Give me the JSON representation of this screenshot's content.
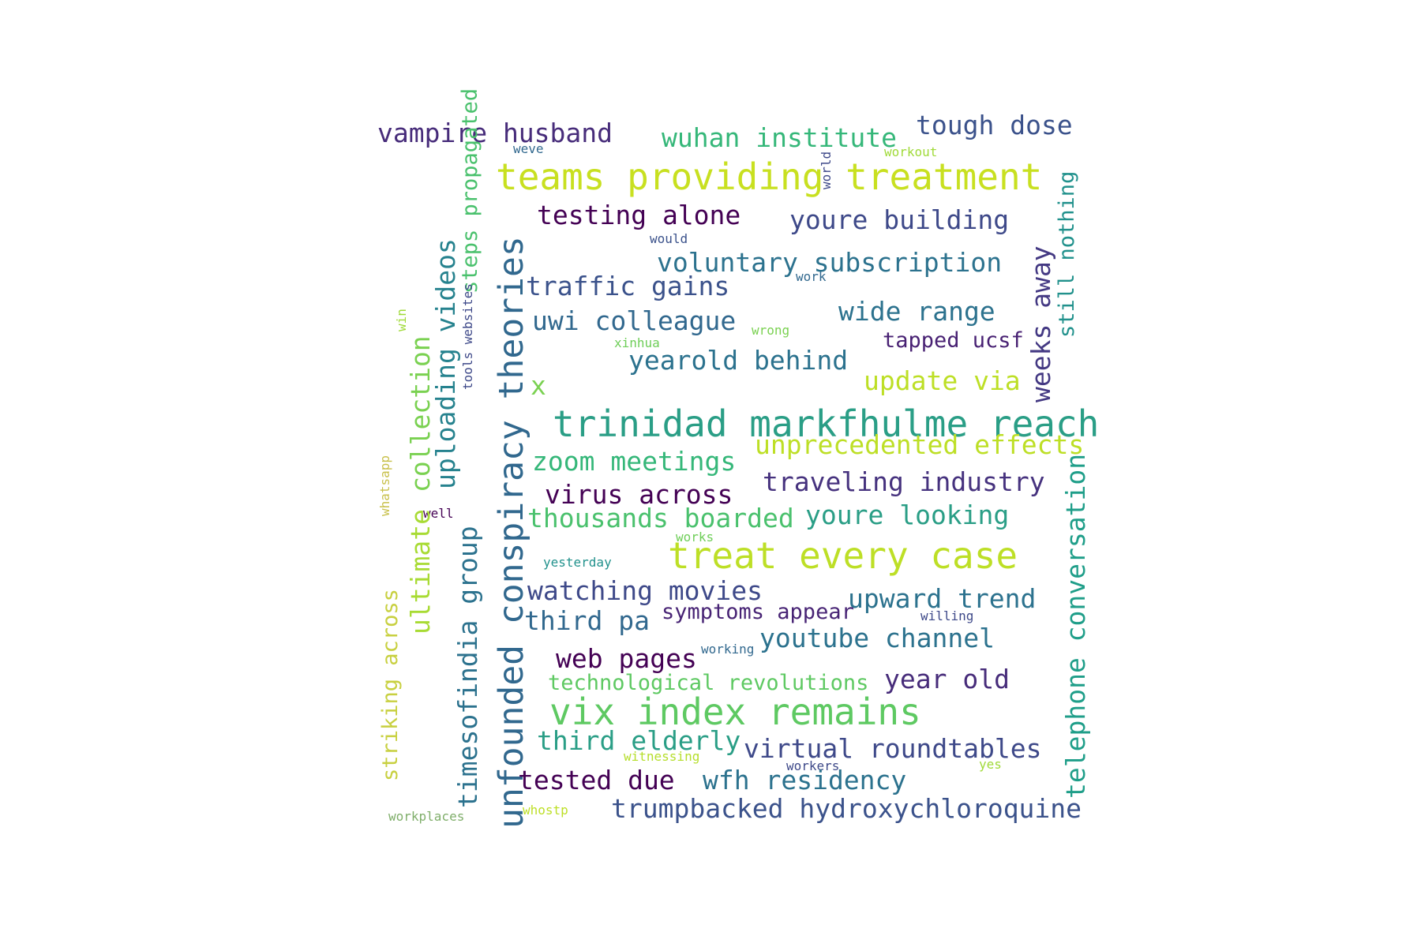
{
  "words": [
    {
      "text": "vampire husband",
      "color": "#472c7a"
    },
    {
      "text": "wuhan institute",
      "color": "#35b779"
    },
    {
      "text": "tough dose",
      "color": "#3b528b"
    },
    {
      "text": "weve",
      "color": "#31688e"
    },
    {
      "text": "workout",
      "color": "#a0da39"
    },
    {
      "text": "world",
      "color": "#3e4989"
    },
    {
      "text": "teams providing treatment",
      "color": "#c8e020"
    },
    {
      "text": "testing alone",
      "color": "#440154"
    },
    {
      "text": "youre building",
      "color": "#3e4989"
    },
    {
      "text": "steps propagated",
      "color": "#4ac16d"
    },
    {
      "text": "would",
      "color": "#3b528b"
    },
    {
      "text": "still nothing",
      "color": "#21918c"
    },
    {
      "text": "voluntary subscription",
      "color": "#2c728e"
    },
    {
      "text": "work",
      "color": "#31688e"
    },
    {
      "text": "traffic gains",
      "color": "#3b528b"
    },
    {
      "text": "uploading videos",
      "color": "#26828e"
    },
    {
      "text": "weeks away",
      "color": "#443983"
    },
    {
      "text": "unfounded conspiracy theories",
      "color": "#31688e"
    },
    {
      "text": "wide range",
      "color": "#2c728e"
    },
    {
      "text": "win",
      "color": "#a0da39"
    },
    {
      "text": "uwi colleague",
      "color": "#31688e"
    },
    {
      "text": "wrong",
      "color": "#7ad151"
    },
    {
      "text": "tapped ucsf",
      "color": "#482173"
    },
    {
      "text": "xinhua",
      "color": "#6ece58"
    },
    {
      "text": "yearold behind",
      "color": "#2c728e"
    },
    {
      "text": "collection",
      "color": "#7ad151"
    },
    {
      "text": "update via",
      "color": "#bddf26"
    },
    {
      "text": "tools websites",
      "color": "#3e4989"
    },
    {
      "text": "x",
      "color": "#7ad151"
    },
    {
      "text": "trinidad markfhulme reach",
      "color": "#2a9e86"
    },
    {
      "text": "unprecedented effects",
      "color": "#bddf26"
    },
    {
      "text": "zoom meetings",
      "color": "#35b779"
    },
    {
      "text": "whatsapp",
      "color": "#c8c04a"
    },
    {
      "text": "traveling industry",
      "color": "#46327e"
    },
    {
      "text": "virus across",
      "color": "#440154"
    },
    {
      "text": "telephone conversation",
      "color": "#1f9e89"
    },
    {
      "text": "well",
      "color": "#440154"
    },
    {
      "text": "ultimate",
      "color": "#a8db34"
    },
    {
      "text": "thousands boarded",
      "color": "#4ac16d"
    },
    {
      "text": "youre looking",
      "color": "#2a9e86"
    },
    {
      "text": "works",
      "color": "#6ece58"
    },
    {
      "text": "timesofindia group",
      "color": "#2c728e"
    },
    {
      "text": "treat every case",
      "color": "#bddf26"
    },
    {
      "text": "yesterday",
      "color": "#21918c"
    },
    {
      "text": "watching movies",
      "color": "#3e4989"
    },
    {
      "text": "upward trend",
      "color": "#2c728e"
    },
    {
      "text": "striking across",
      "color": "#c8d040"
    },
    {
      "text": "third pa",
      "color": "#31688e"
    },
    {
      "text": "symptoms appear",
      "color": "#482475"
    },
    {
      "text": "willing",
      "color": "#3e4989"
    },
    {
      "text": "youtube channel",
      "color": "#2c728e"
    },
    {
      "text": "web pages",
      "color": "#440154"
    },
    {
      "text": "working",
      "color": "#31688e"
    },
    {
      "text": "technological revolutions",
      "color": "#5ec962"
    },
    {
      "text": "year old",
      "color": "#472c7a"
    },
    {
      "text": "vix index remains",
      "color": "#5ec962"
    },
    {
      "text": "third elderly",
      "color": "#2a9e86"
    },
    {
      "text": "virtual roundtables",
      "color": "#3e4989"
    },
    {
      "text": "witnessing",
      "color": "#b5de2b"
    },
    {
      "text": "workers",
      "color": "#3e4989"
    },
    {
      "text": "yes",
      "color": "#a0da39"
    },
    {
      "text": "tested due",
      "color": "#440154"
    },
    {
      "text": "wfh residency",
      "color": "#2c728e"
    },
    {
      "text": "workplaces",
      "color": "#7fae6a"
    },
    {
      "text": "whostp",
      "color": "#bddf26"
    },
    {
      "text": "trumpbacked hydroxychloroquine",
      "color": "#3b528b"
    }
  ]
}
